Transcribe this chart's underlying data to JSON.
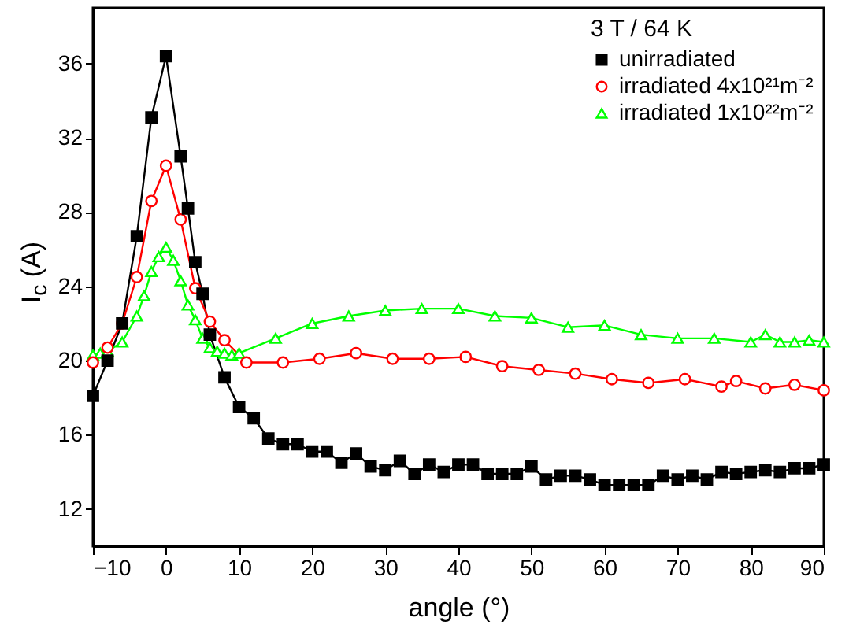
{
  "chart_data": {
    "type": "line",
    "xlabel": "angle (°)",
    "ylabel": "I$_{c}$ (A)",
    "legend_title": "3 T / 64 K",
    "legend": "top right",
    "xlim": [
      -10,
      90
    ],
    "xticks": [
      -10,
      0,
      10,
      20,
      30,
      40,
      50,
      60,
      70,
      80,
      90
    ],
    "ylim": [
      10,
      39
    ],
    "yticks": [
      12,
      16,
      20,
      24,
      28,
      32,
      36
    ],
    "grid": false,
    "series": [
      {
        "name": "unirradiated",
        "color": "#000000",
        "marker": "square",
        "x": [
          -10,
          -8,
          -6,
          -4,
          -2,
          0,
          2,
          3,
          4,
          5,
          6,
          8,
          10,
          12,
          14,
          16,
          18,
          20,
          22,
          24,
          26,
          28,
          30,
          32,
          34,
          36,
          38,
          40,
          42,
          44,
          46,
          48,
          50,
          52,
          54,
          56,
          58,
          60,
          62,
          64,
          66,
          68,
          70,
          72,
          74,
          76,
          78,
          80,
          82,
          84,
          86,
          88,
          90
        ],
        "values": [
          18.1,
          20.0,
          22.0,
          26.7,
          33.1,
          36.4,
          31.0,
          28.2,
          25.3,
          23.6,
          21.4,
          19.1,
          17.5,
          16.9,
          15.8,
          15.5,
          15.5,
          15.1,
          15.1,
          14.5,
          15.0,
          14.3,
          14.1,
          14.6,
          13.9,
          14.4,
          14.0,
          14.4,
          14.4,
          13.9,
          13.9,
          13.9,
          14.3,
          13.6,
          13.8,
          13.8,
          13.6,
          13.3,
          13.3,
          13.3,
          13.3,
          13.8,
          13.6,
          13.8,
          13.6,
          14.0,
          13.9,
          14.0,
          14.1,
          14.0,
          14.2,
          14.2,
          14.4
        ]
      },
      {
        "name": "irradiated 4x10²¹m⁻²",
        "color": "#ff0000",
        "marker": "circle",
        "x": [
          -10,
          -8,
          -6,
          -4,
          -2,
          0,
          2,
          4,
          6,
          8,
          11,
          16,
          21,
          26,
          31,
          36,
          41,
          46,
          51,
          56,
          61,
          66,
          71,
          76,
          78,
          82,
          86,
          90
        ],
        "values": [
          19.9,
          20.7,
          22.0,
          24.5,
          28.6,
          30.5,
          27.6,
          23.9,
          22.1,
          21.1,
          19.9,
          19.9,
          20.1,
          20.4,
          20.1,
          20.1,
          20.2,
          19.7,
          19.5,
          19.3,
          19.0,
          18.8,
          19.0,
          18.6,
          18.9,
          18.5,
          18.7,
          18.4
        ]
      },
      {
        "name": "irradiated 1x10²²m⁻²",
        "color": "#00ff00",
        "marker": "triangle",
        "x": [
          -10,
          -9,
          -8,
          -6,
          -4,
          -3,
          -2,
          -1,
          0,
          1,
          2,
          3,
          4,
          5,
          6,
          7,
          8,
          9,
          10,
          15,
          20,
          25,
          30,
          35,
          40,
          45,
          50,
          55,
          60,
          65,
          70,
          75,
          80,
          82,
          84,
          86,
          88,
          90
        ],
        "values": [
          20.3,
          20.4,
          20.5,
          21.0,
          22.4,
          23.5,
          24.8,
          25.6,
          26.1,
          25.4,
          24.3,
          23.0,
          22.2,
          21.2,
          20.7,
          20.5,
          20.4,
          20.3,
          20.4,
          21.2,
          22.0,
          22.4,
          22.7,
          22.8,
          22.8,
          22.4,
          22.3,
          21.8,
          21.9,
          21.4,
          21.2,
          21.2,
          21.0,
          21.4,
          21.0,
          21.0,
          21.1,
          21.0
        ]
      }
    ]
  }
}
